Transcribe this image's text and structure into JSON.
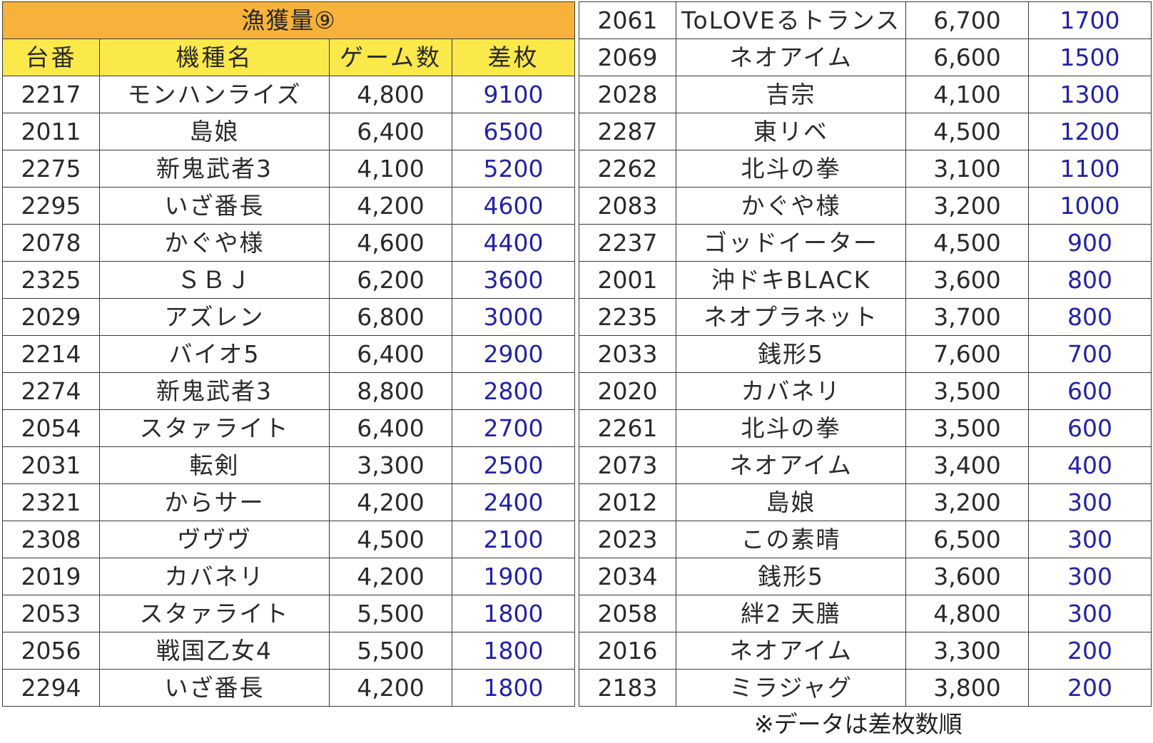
{
  "title": "漁獲量⑨",
  "headers": {
    "machine": "台番",
    "name": "機種名",
    "games": "ゲーム数",
    "diff": "差枚"
  },
  "left_rows": [
    {
      "machine": "2217",
      "name": "モンハンライズ",
      "games": "4,800",
      "diff": "9100"
    },
    {
      "machine": "2011",
      "name": "島娘",
      "games": "6,400",
      "diff": "6500"
    },
    {
      "machine": "2275",
      "name": "新鬼武者3",
      "games": "4,100",
      "diff": "5200"
    },
    {
      "machine": "2295",
      "name": "いざ番長",
      "games": "4,200",
      "diff": "4600"
    },
    {
      "machine": "2078",
      "name": "かぐや様",
      "games": "4,600",
      "diff": "4400"
    },
    {
      "machine": "2325",
      "name": "ＳＢＪ",
      "games": "6,200",
      "diff": "3600"
    },
    {
      "machine": "2029",
      "name": "アズレン",
      "games": "6,800",
      "diff": "3000"
    },
    {
      "machine": "2214",
      "name": "バイオ5",
      "games": "6,400",
      "diff": "2900"
    },
    {
      "machine": "2274",
      "name": "新鬼武者3",
      "games": "8,800",
      "diff": "2800"
    },
    {
      "machine": "2054",
      "name": "スタァライト",
      "games": "6,400",
      "diff": "2700"
    },
    {
      "machine": "2031",
      "name": "転剣",
      "games": "3,300",
      "diff": "2500"
    },
    {
      "machine": "2321",
      "name": "からサー",
      "games": "4,200",
      "diff": "2400"
    },
    {
      "machine": "2308",
      "name": "ヴヴヴ",
      "games": "4,500",
      "diff": "2100"
    },
    {
      "machine": "2019",
      "name": "カバネリ",
      "games": "4,200",
      "diff": "1900"
    },
    {
      "machine": "2053",
      "name": "スタァライト",
      "games": "5,500",
      "diff": "1800"
    },
    {
      "machine": "2056",
      "name": "戦国乙女4",
      "games": "5,500",
      "diff": "1800"
    },
    {
      "machine": "2294",
      "name": "いざ番長",
      "games": "4,200",
      "diff": "1800"
    }
  ],
  "right_rows": [
    {
      "machine": "2061",
      "name": "ToLOVEるトランス",
      "games": "6,700",
      "diff": "1700"
    },
    {
      "machine": "2069",
      "name": "ネオアイム",
      "games": "6,600",
      "diff": "1500"
    },
    {
      "machine": "2028",
      "name": "吉宗",
      "games": "4,100",
      "diff": "1300"
    },
    {
      "machine": "2287",
      "name": "東リベ",
      "games": "4,500",
      "diff": "1200"
    },
    {
      "machine": "2262",
      "name": "北斗の拳",
      "games": "3,100",
      "diff": "1100"
    },
    {
      "machine": "2083",
      "name": "かぐや様",
      "games": "3,200",
      "diff": "1000"
    },
    {
      "machine": "2237",
      "name": "ゴッドイーター",
      "games": "4,500",
      "diff": "900"
    },
    {
      "machine": "2001",
      "name": "沖ドキBLACK",
      "games": "3,600",
      "diff": "800"
    },
    {
      "machine": "2235",
      "name": "ネオプラネット",
      "games": "3,700",
      "diff": "800"
    },
    {
      "machine": "2033",
      "name": "銭形5",
      "games": "7,600",
      "diff": "700"
    },
    {
      "machine": "2020",
      "name": "カバネリ",
      "games": "3,500",
      "diff": "600"
    },
    {
      "machine": "2261",
      "name": "北斗の拳",
      "games": "3,500",
      "diff": "600"
    },
    {
      "machine": "2073",
      "name": "ネオアイム",
      "games": "3,400",
      "diff": "400"
    },
    {
      "machine": "2012",
      "name": "島娘",
      "games": "3,200",
      "diff": "300"
    },
    {
      "machine": "2023",
      "name": "この素晴",
      "games": "6,500",
      "diff": "300"
    },
    {
      "machine": "2034",
      "name": "銭形5",
      "games": "3,600",
      "diff": "300"
    },
    {
      "machine": "2058",
      "name": "絆2 天膳",
      "games": "4,800",
      "diff": "300"
    },
    {
      "machine": "2016",
      "name": "ネオアイム",
      "games": "3,300",
      "diff": "200"
    },
    {
      "machine": "2183",
      "name": "ミラジャグ",
      "games": "3,800",
      "diff": "200"
    }
  ],
  "note": "※データは差枚数順",
  "colors": {
    "title_bg": "#f7b23b",
    "header_bg": "#fbe84a",
    "diff_text": "#2222a8"
  }
}
